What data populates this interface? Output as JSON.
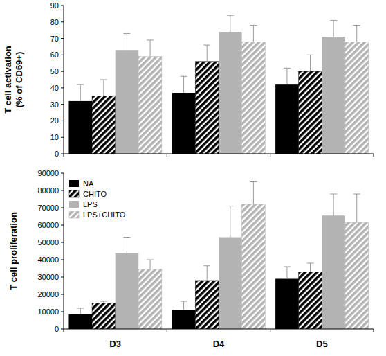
{
  "chart_data": [
    {
      "type": "bar",
      "y_label": "T cell activation\n(% of CD69+)",
      "categories": [
        null,
        null,
        null
      ],
      "ylim": [
        0,
        90
      ],
      "yticks": [
        0,
        10,
        20,
        30,
        40,
        50,
        60,
        70,
        80,
        90
      ],
      "grid": false,
      "tick_labels": "y",
      "series": [
        {
          "color": "#000000",
          "values": [
            32,
            37,
            42
          ],
          "errors": [
            10,
            10,
            10
          ]
        },
        {
          "color": "#000000",
          "values": [
            35,
            56,
            50
          ],
          "errors": [
            10,
            10,
            10
          ]
        },
        {
          "color": "#b3b3b3",
          "values": [
            63,
            74,
            71
          ],
          "errors": [
            10,
            10,
            10
          ]
        },
        {
          "color": "#b3b3b3",
          "values": [
            59,
            68,
            68
          ],
          "errors": [
            10,
            10,
            10
          ]
        }
      ]
    },
    {
      "type": "bar",
      "y_label": "T cell proliferation",
      "categories": [
        "D3",
        "D4",
        "D5"
      ],
      "ylim": [
        0,
        90000
      ],
      "yticks": [
        0,
        10000,
        20000,
        30000,
        40000,
        50000,
        60000,
        70000,
        80000,
        90000
      ],
      "grid": false,
      "legend": "upper left",
      "series": [
        {
          "name": "NA",
          "color": "#000000",
          "values": [
            8500,
            11000,
            29000
          ],
          "errors": [
            3500,
            5000,
            7000
          ]
        },
        {
          "name": "CHITO",
          "color": "#000000",
          "values": [
            15000,
            28000,
            33000
          ],
          "errors": [
            1000,
            8500,
            5000
          ]
        },
        {
          "name": "LPS",
          "color": "#b3b3b3",
          "values": [
            44000,
            53000,
            65500
          ],
          "errors": [
            9000,
            18000,
            12500
          ]
        },
        {
          "name": "LPS+CHITO",
          "color": "#b3b3b3",
          "values": [
            34500,
            72000,
            61500
          ],
          "errors": [
            5500,
            13000,
            16500
          ]
        }
      ]
    }
  ]
}
